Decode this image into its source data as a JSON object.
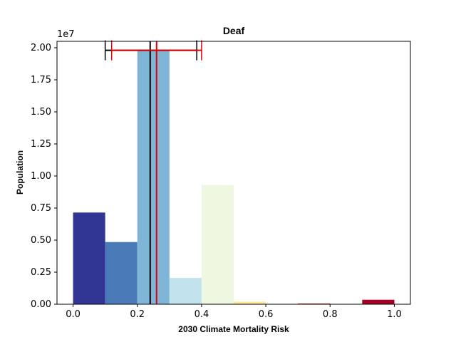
{
  "chart_data": {
    "type": "bar",
    "title": "Deaf",
    "xlabel": "2030 Climate Mortality Risk",
    "ylabel": "Population",
    "y_multiplier_label": "1e7",
    "xlim": [
      -0.05,
      1.05
    ],
    "ylim": [
      0,
      20500000
    ],
    "x_ticks": [
      0.0,
      0.2,
      0.4,
      0.6,
      0.8,
      1.0
    ],
    "x_tick_labels": [
      "0.0",
      "0.2",
      "0.4",
      "0.6",
      "0.8",
      "1.0"
    ],
    "y_ticks": [
      0,
      2500000,
      5000000,
      7500000,
      10000000,
      12500000,
      15000000,
      17500000,
      20000000
    ],
    "y_tick_labels": [
      "0.00",
      "0.25",
      "0.50",
      "0.75",
      "1.00",
      "1.25",
      "1.50",
      "1.75",
      "2.00"
    ],
    "grid": false,
    "bins": [
      {
        "x0": 0.0,
        "x1": 0.1,
        "value": 7150000,
        "color": "#313695"
      },
      {
        "x0": 0.1,
        "x1": 0.2,
        "value": 4850000,
        "color": "#4a7ab7"
      },
      {
        "x0": 0.2,
        "x1": 0.3,
        "value": 19800000,
        "color": "#7fb5d7"
      },
      {
        "x0": 0.3,
        "x1": 0.4,
        "value": 2050000,
        "color": "#c2e3ee"
      },
      {
        "x0": 0.4,
        "x1": 0.5,
        "value": 9300000,
        "color": "#eef7df"
      },
      {
        "x0": 0.5,
        "x1": 0.6,
        "value": 200000,
        "color": "#fee99d"
      },
      {
        "x0": 0.6,
        "x1": 0.7,
        "value": 0,
        "color": "#fdbf71"
      },
      {
        "x0": 0.7,
        "x1": 0.8,
        "value": 60000,
        "color": "#d73027"
      },
      {
        "x0": 0.8,
        "x1": 0.9,
        "value": 0,
        "color": "#e34a33"
      },
      {
        "x0": 0.9,
        "x1": 1.0,
        "value": 350000,
        "color": "#a50026"
      }
    ],
    "reference_lines": [
      {
        "x": 0.24,
        "color": "#000000",
        "interval": [
          0.1,
          0.385
        ],
        "interval_y": 19800000
      },
      {
        "x": 0.26,
        "color": "#e00000",
        "interval": [
          0.12,
          0.4
        ],
        "interval_y": 19800000
      }
    ]
  }
}
